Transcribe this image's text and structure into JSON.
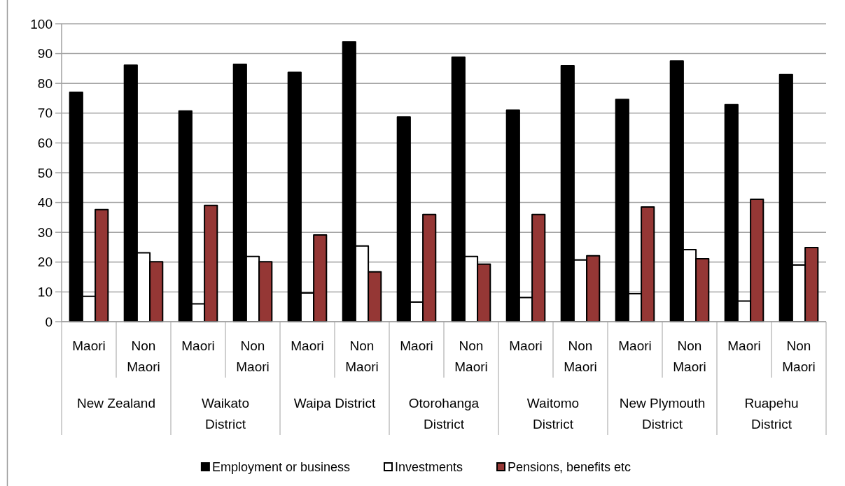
{
  "chart_data": {
    "type": "bar",
    "categories": [
      "Maori",
      "Non Maori",
      "Maori",
      "Non Maori",
      "Maori",
      "Non Maori",
      "Maori",
      "Non Maori",
      "Maori",
      "Non Maori",
      "Maori",
      "Non Maori",
      "Maori",
      "Non Maori"
    ],
    "series": [
      {
        "name": "Employment or business",
        "color": "#000000",
        "values": [
          77,
          86.1,
          70.7,
          86.4,
          83.7,
          93.9,
          68.7,
          88.8,
          71,
          85.9,
          74.6,
          87.5,
          72.8,
          82.9
        ]
      },
      {
        "name": "Investments",
        "color": "#ffffff",
        "values": [
          8.5,
          23.1,
          6,
          21.9,
          9.6,
          25.4,
          6.6,
          21.9,
          8.1,
          20.7,
          9.4,
          24.2,
          6.9,
          19
        ]
      },
      {
        "name": "Pensions, benefits etc",
        "color": "#953735",
        "values": [
          37.6,
          20.1,
          39,
          20.1,
          29.1,
          16.7,
          36,
          19.3,
          36,
          22.1,
          38.5,
          21.1,
          41.1,
          24.9
        ]
      }
    ],
    "ylim": [
      0,
      100
    ],
    "yticks": [
      0,
      10,
      20,
      30,
      40,
      50,
      60,
      70,
      80,
      90,
      100
    ],
    "grid": "y",
    "legend": "bottom",
    "annotations": [
      "New Zealand",
      "Waikato District",
      "Waipa District",
      "Otorohanga District",
      "Waitomo District",
      "New Plymouth District",
      "Ruapehu District"
    ]
  }
}
